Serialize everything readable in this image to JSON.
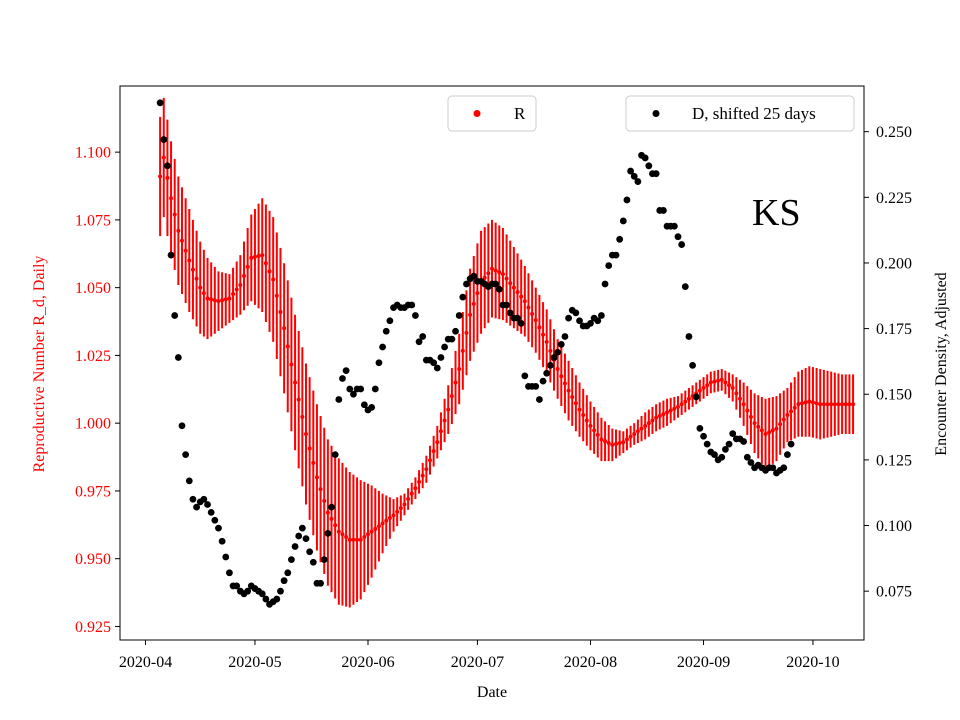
{
  "chart_data": {
    "type": "scatter",
    "state_label": "KS",
    "xlabel": "Date",
    "ylabel_left": "Reproductive Number R_d, Daily",
    "ylabel_right": "Encounter Density, Adjusted",
    "x_tick_labels": [
      "2020-04",
      "2020-05",
      "2020-06",
      "2020-07",
      "2020-08",
      "2020-09",
      "2020-10"
    ],
    "xlim_days": [
      -7,
      197
    ],
    "ylim_left": [
      0.92,
      1.1244
    ],
    "yticks_left": [
      "0.925",
      "0.950",
      "0.975",
      "1.000",
      "1.025",
      "1.050",
      "1.075",
      "1.100"
    ],
    "ylim_right": [
      0.0564,
      0.2674
    ],
    "yticks_right": [
      "0.075",
      "0.100",
      "0.125",
      "0.150",
      "0.175",
      "0.200",
      "0.225",
      "0.250"
    ],
    "left_color": "#ff0000",
    "right_color": "#000000",
    "legend": [
      {
        "label": "R",
        "color": "#ff0000",
        "position": "top-center"
      },
      {
        "label": "D, shifted 25 days",
        "color": "#000000",
        "position": "top-right"
      }
    ],
    "series_R": {
      "name": "R",
      "note": "daily mean of R_d with error bars; day 0 = 2020-04-01",
      "keyframes_day": [
        4,
        5,
        7,
        9,
        12,
        15,
        17,
        20,
        23,
        26,
        29,
        32,
        35,
        38,
        41,
        44,
        47,
        50,
        53,
        56,
        59,
        62,
        65,
        68,
        71,
        74,
        77,
        80,
        83,
        86,
        89,
        92,
        95,
        98,
        101,
        104,
        107,
        110,
        113,
        116,
        119,
        122,
        125,
        128,
        131,
        134,
        137,
        140,
        143,
        146,
        149,
        152,
        155,
        158,
        161,
        164,
        167,
        170,
        173,
        176,
        179,
        182,
        185,
        188,
        191,
        194
      ],
      "keyframes_mean": [
        1.091,
        1.098,
        1.083,
        1.071,
        1.06,
        1.05,
        1.046,
        1.045,
        1.046,
        1.051,
        1.061,
        1.062,
        1.053,
        1.035,
        1.015,
        0.996,
        0.98,
        0.967,
        0.96,
        0.957,
        0.957,
        0.96,
        0.963,
        0.966,
        0.97,
        0.976,
        0.983,
        0.993,
        1.005,
        1.02,
        1.04,
        1.052,
        1.057,
        1.055,
        1.05,
        1.045,
        1.038,
        1.03,
        1.02,
        1.012,
        1.005,
        0.999,
        0.994,
        0.992,
        0.993,
        0.996,
        0.999,
        1.002,
        1.004,
        1.006,
        1.009,
        1.012,
        1.015,
        1.016,
        1.013,
        1.007,
        1.0,
        0.996,
        0.998,
        1.003,
        1.007,
        1.008,
        1.007,
        1.007,
        1.007,
        1.007
      ],
      "keyframes_halfwidth": [
        0.022,
        0.022,
        0.021,
        0.02,
        0.019,
        0.017,
        0.015,
        0.011,
        0.009,
        0.011,
        0.016,
        0.021,
        0.023,
        0.024,
        0.025,
        0.026,
        0.027,
        0.027,
        0.027,
        0.025,
        0.022,
        0.017,
        0.011,
        0.006,
        0.004,
        0.004,
        0.005,
        0.006,
        0.009,
        0.013,
        0.017,
        0.019,
        0.018,
        0.017,
        0.015,
        0.013,
        0.012,
        0.012,
        0.011,
        0.011,
        0.01,
        0.009,
        0.008,
        0.006,
        0.004,
        0.004,
        0.005,
        0.005,
        0.005,
        0.004,
        0.004,
        0.004,
        0.004,
        0.004,
        0.005,
        0.008,
        0.011,
        0.013,
        0.012,
        0.01,
        0.012,
        0.013,
        0.013,
        0.012,
        0.011,
        0.011
      ]
    },
    "series_D": {
      "name": "D, shifted 25 days",
      "note": "daily encounter density shifted forward 25 days; day 0 = 2020-04-01",
      "points": [
        [
          4,
          0.261
        ],
        [
          5,
          0.247
        ],
        [
          6,
          0.237
        ],
        [
          7,
          0.203
        ],
        [
          8,
          0.18
        ],
        [
          9,
          0.164
        ],
        [
          10,
          0.138
        ],
        [
          11,
          0.127
        ],
        [
          12,
          0.117
        ],
        [
          13,
          0.11
        ],
        [
          14,
          0.107
        ],
        [
          15,
          0.109
        ],
        [
          16,
          0.11
        ],
        [
          17,
          0.108
        ],
        [
          18,
          0.105
        ],
        [
          19,
          0.102
        ],
        [
          20,
          0.099
        ],
        [
          21,
          0.094
        ],
        [
          22,
          0.088
        ],
        [
          23,
          0.082
        ],
        [
          24,
          0.077
        ],
        [
          25,
          0.077
        ],
        [
          26,
          0.075
        ],
        [
          27,
          0.074
        ],
        [
          28,
          0.075
        ],
        [
          29,
          0.077
        ],
        [
          30,
          0.076
        ],
        [
          31,
          0.075
        ],
        [
          32,
          0.074
        ],
        [
          33,
          0.072
        ],
        [
          34,
          0.07
        ],
        [
          35,
          0.071
        ],
        [
          36,
          0.072
        ],
        [
          37,
          0.075
        ],
        [
          38,
          0.079
        ],
        [
          39,
          0.082
        ],
        [
          40,
          0.087
        ],
        [
          41,
          0.092
        ],
        [
          42,
          0.096
        ],
        [
          43,
          0.099
        ],
        [
          44,
          0.095
        ],
        [
          45,
          0.09
        ],
        [
          46,
          0.086
        ],
        [
          47,
          0.078
        ],
        [
          48,
          0.078
        ],
        [
          49,
          0.087
        ],
        [
          50,
          0.097
        ],
        [
          51,
          0.107
        ],
        [
          52,
          0.127
        ],
        [
          53,
          0.148
        ],
        [
          54,
          0.156
        ],
        [
          55,
          0.159
        ],
        [
          56,
          0.152
        ],
        [
          57,
          0.15
        ],
        [
          58,
          0.152
        ],
        [
          59,
          0.152
        ],
        [
          60,
          0.146
        ],
        [
          61,
          0.144
        ],
        [
          62,
          0.145
        ],
        [
          63,
          0.152
        ],
        [
          64,
          0.162
        ],
        [
          65,
          0.168
        ],
        [
          66,
          0.174
        ],
        [
          67,
          0.178
        ],
        [
          68,
          0.183
        ],
        [
          69,
          0.184
        ],
        [
          70,
          0.183
        ],
        [
          71,
          0.183
        ],
        [
          72,
          0.184
        ],
        [
          73,
          0.184
        ],
        [
          74,
          0.18
        ],
        [
          75,
          0.17
        ],
        [
          76,
          0.172
        ],
        [
          77,
          0.163
        ],
        [
          78,
          0.163
        ],
        [
          79,
          0.162
        ],
        [
          80,
          0.16
        ],
        [
          81,
          0.164
        ],
        [
          82,
          0.168
        ],
        [
          83,
          0.171
        ],
        [
          84,
          0.171
        ],
        [
          85,
          0.174
        ],
        [
          86,
          0.18
        ],
        [
          87,
          0.187
        ],
        [
          88,
          0.192
        ],
        [
          89,
          0.194
        ],
        [
          90,
          0.195
        ],
        [
          91,
          0.193
        ],
        [
          92,
          0.193
        ],
        [
          93,
          0.192
        ],
        [
          94,
          0.191
        ],
        [
          95,
          0.192
        ],
        [
          96,
          0.192
        ],
        [
          97,
          0.19
        ],
        [
          98,
          0.184
        ],
        [
          99,
          0.184
        ],
        [
          100,
          0.181
        ],
        [
          101,
          0.179
        ],
        [
          102,
          0.179
        ],
        [
          103,
          0.177
        ],
        [
          104,
          0.157
        ],
        [
          105,
          0.153
        ],
        [
          106,
          0.153
        ],
        [
          107,
          0.153
        ],
        [
          108,
          0.148
        ],
        [
          109,
          0.155
        ],
        [
          110,
          0.158
        ],
        [
          111,
          0.161
        ],
        [
          112,
          0.164
        ],
        [
          113,
          0.166
        ],
        [
          114,
          0.169
        ],
        [
          115,
          0.172
        ],
        [
          116,
          0.179
        ],
        [
          117,
          0.182
        ],
        [
          118,
          0.181
        ],
        [
          119,
          0.178
        ],
        [
          120,
          0.176
        ],
        [
          121,
          0.176
        ],
        [
          122,
          0.177
        ],
        [
          123,
          0.179
        ],
        [
          124,
          0.178
        ],
        [
          125,
          0.18
        ],
        [
          126,
          0.192
        ],
        [
          127,
          0.199
        ],
        [
          128,
          0.203
        ],
        [
          129,
          0.203
        ],
        [
          130,
          0.209
        ],
        [
          131,
          0.216
        ],
        [
          132,
          0.224
        ],
        [
          133,
          0.235
        ],
        [
          134,
          0.233
        ],
        [
          135,
          0.231
        ],
        [
          136,
          0.241
        ],
        [
          137,
          0.24
        ],
        [
          138,
          0.237
        ],
        [
          139,
          0.234
        ],
        [
          140,
          0.234
        ],
        [
          141,
          0.22
        ],
        [
          142,
          0.22
        ],
        [
          143,
          0.214
        ],
        [
          144,
          0.214
        ],
        [
          145,
          0.214
        ],
        [
          146,
          0.21
        ],
        [
          147,
          0.207
        ],
        [
          148,
          0.191
        ],
        [
          149,
          0.172
        ],
        [
          150,
          0.161
        ],
        [
          151,
          0.149
        ],
        [
          152,
          0.137
        ],
        [
          153,
          0.134
        ],
        [
          154,
          0.131
        ],
        [
          155,
          0.128
        ],
        [
          156,
          0.127
        ],
        [
          157,
          0.125
        ],
        [
          158,
          0.126
        ],
        [
          159,
          0.129
        ],
        [
          160,
          0.131
        ],
        [
          161,
          0.135
        ],
        [
          162,
          0.133
        ],
        [
          163,
          0.133
        ],
        [
          164,
          0.132
        ],
        [
          165,
          0.126
        ],
        [
          166,
          0.124
        ],
        [
          167,
          0.122
        ],
        [
          168,
          0.123
        ],
        [
          169,
          0.122
        ],
        [
          170,
          0.121
        ],
        [
          171,
          0.122
        ],
        [
          172,
          0.122
        ],
        [
          173,
          0.12
        ],
        [
          174,
          0.121
        ],
        [
          175,
          0.122
        ],
        [
          176,
          0.127
        ],
        [
          177,
          0.131
        ]
      ]
    }
  }
}
